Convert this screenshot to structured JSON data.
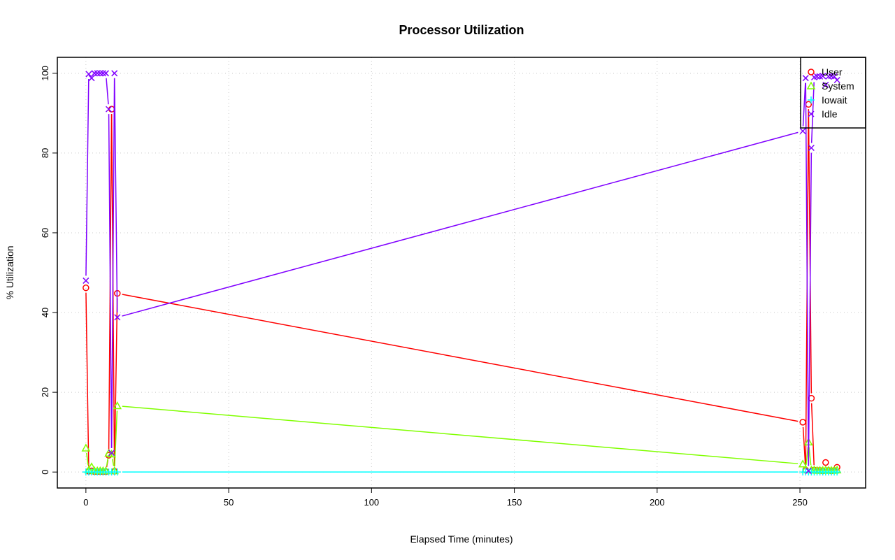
{
  "chart_data": {
    "type": "line",
    "title": "Processor Utilization",
    "xlabel": "Elapsed Time (minutes)",
    "ylabel": "% Utilization",
    "xlim": [
      -10,
      273
    ],
    "ylim": [
      -4,
      104
    ],
    "xticks": [
      0,
      50,
      100,
      150,
      200,
      250
    ],
    "yticks": [
      0,
      20,
      40,
      60,
      80,
      100
    ],
    "grid": true,
    "legend_position": "top-right",
    "x": [
      0,
      1,
      2,
      3,
      4,
      5,
      6,
      7,
      8,
      9,
      10,
      11,
      251,
      252,
      253,
      254,
      255,
      256,
      257,
      258,
      259,
      260,
      261,
      262,
      263
    ],
    "series": [
      {
        "name": "User",
        "color": "#FF0000",
        "marker": "circle",
        "values": [
          46.2,
          0.2,
          0.3,
          0.1,
          0.1,
          0.1,
          0.1,
          0.1,
          4.2,
          91,
          0.2,
          44.8,
          12.5,
          0.5,
          92.2,
          18.5,
          0.5,
          0.4,
          0.4,
          0.3,
          2.4,
          0.4,
          0.3,
          0.4,
          1.2
        ]
      },
      {
        "name": "System",
        "color": "#80FF00",
        "marker": "triangle",
        "values": [
          6.0,
          0.5,
          1.3,
          0.3,
          0.3,
          0.3,
          0.3,
          0.3,
          4.7,
          4.5,
          0.3,
          16.6,
          2.0,
          0.6,
          7.5,
          0.5,
          0.5,
          0.4,
          0.4,
          0.4,
          0.5,
          0.4,
          0.4,
          0.4,
          0.5
        ]
      },
      {
        "name": "Iowait",
        "color": "#00FFFF",
        "marker": "plus",
        "values": [
          0,
          0,
          0,
          0,
          0,
          0,
          0,
          0,
          0,
          0,
          0,
          0,
          0,
          0,
          0,
          0,
          0,
          0,
          0,
          0,
          0,
          0,
          0,
          0,
          0
        ]
      },
      {
        "name": "Idle",
        "color": "#8000FF",
        "marker": "cross",
        "values": [
          48.0,
          99.8,
          98.8,
          100,
          100,
          100,
          100,
          100,
          91,
          4.8,
          100,
          38.8,
          85.5,
          98.8,
          0.3,
          81.3,
          99,
          99.2,
          99.2,
          99.3,
          97.1,
          99.2,
          99.3,
          99.2,
          98.3
        ]
      }
    ]
  }
}
